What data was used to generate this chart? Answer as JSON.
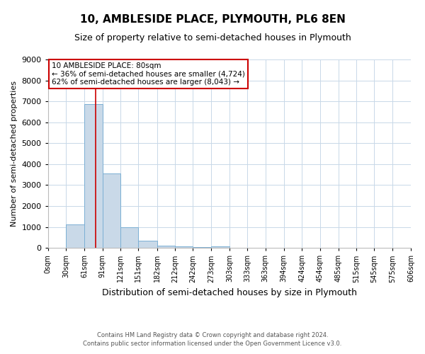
{
  "title": "10, AMBLESIDE PLACE, PLYMOUTH, PL6 8EN",
  "subtitle": "Size of property relative to semi-detached houses in Plymouth",
  "xlabel": "Distribution of semi-detached houses by size in Plymouth",
  "ylabel": "Number of semi-detached properties",
  "footnote1": "Contains HM Land Registry data © Crown copyright and database right 2024.",
  "footnote2": "Contains public sector information licensed under the Open Government Licence v3.0.",
  "bar_edges": [
    0,
    30,
    61,
    91,
    121,
    151,
    182,
    212,
    242,
    273,
    303,
    333,
    363,
    394,
    424,
    454,
    485,
    515,
    545,
    575,
    606
  ],
  "bar_heights": [
    0,
    1130,
    6880,
    3560,
    970,
    330,
    120,
    80,
    55,
    65,
    0,
    0,
    0,
    0,
    0,
    0,
    0,
    0,
    0,
    0
  ],
  "bar_color": "#c9d9e8",
  "bar_edge_color": "#7bafd4",
  "property_size": 80,
  "property_line_color": "#cc0000",
  "annotation_line1": "10 AMBLESIDE PLACE: 80sqm",
  "annotation_line2": "← 36% of semi-detached houses are smaller (4,724)",
  "annotation_line3": "62% of semi-detached houses are larger (8,043) →",
  "annotation_box_color": "#cc0000",
  "ylim": [
    0,
    9000
  ],
  "yticks": [
    0,
    1000,
    2000,
    3000,
    4000,
    5000,
    6000,
    7000,
    8000,
    9000
  ],
  "tick_labels": [
    "0sqm",
    "30sqm",
    "61sqm",
    "91sqm",
    "121sqm",
    "151sqm",
    "182sqm",
    "212sqm",
    "242sqm",
    "273sqm",
    "303sqm",
    "333sqm",
    "363sqm",
    "394sqm",
    "424sqm",
    "454sqm",
    "485sqm",
    "515sqm",
    "545sqm",
    "575sqm",
    "606sqm"
  ],
  "background_color": "#ffffff",
  "grid_color": "#c8d8e8",
  "title_fontsize": 11,
  "subtitle_fontsize": 9,
  "xlabel_fontsize": 9,
  "ylabel_fontsize": 8,
  "tick_fontsize": 7,
  "ytick_fontsize": 8,
  "footnote_fontsize": 6,
  "annot_fontsize": 7.5
}
